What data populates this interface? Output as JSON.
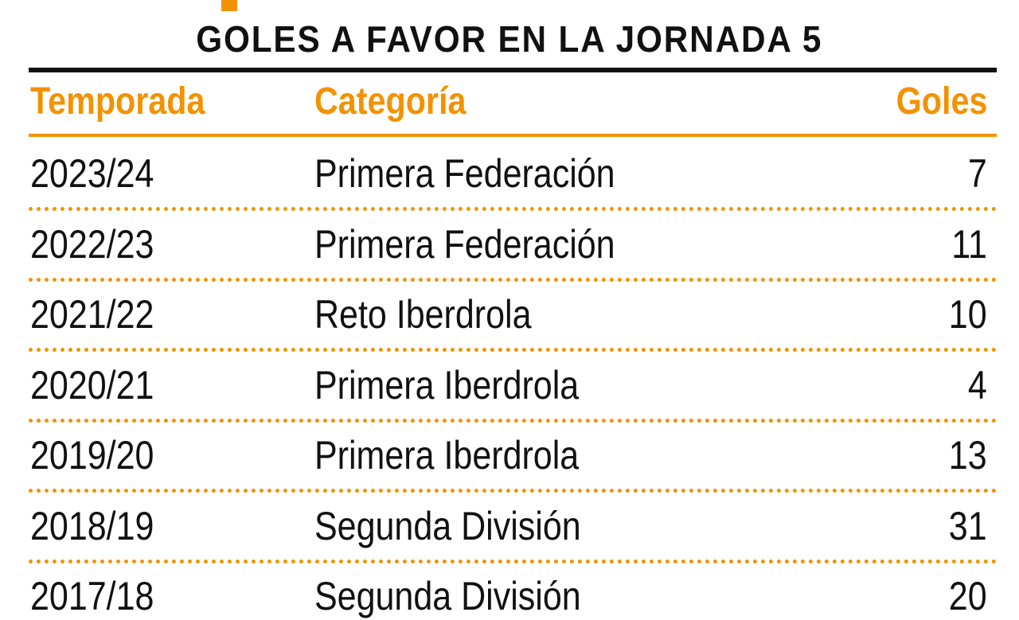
{
  "title": "GOLES A FAVOR EN LA JORNADA 5",
  "table": {
    "header": [
      "Temporada",
      "Categoría",
      "Goles"
    ],
    "rows": [
      [
        "2023/24",
        "Primera Federación",
        "7"
      ],
      [
        "2022/23",
        "Primera Federación",
        "11"
      ],
      [
        "2021/22",
        "Reto Iberdrola",
        "10"
      ],
      [
        "2020/21",
        "Primera Iberdrola",
        "4"
      ],
      [
        "2019/20",
        "Primera Iberdrola",
        "13"
      ],
      [
        "2018/19",
        "Segunda División",
        "31"
      ],
      [
        "2017/18",
        "Segunda División",
        "20"
      ]
    ]
  }
}
